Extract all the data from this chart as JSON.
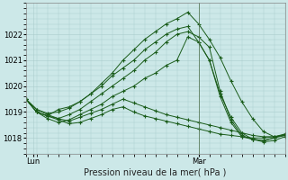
{
  "xlabel": "Pression niveau de la mer( hPa )",
  "background_color": "#cce8e8",
  "grid_color": "#aacccc",
  "line_color": "#1a5c1a",
  "marker": "+",
  "ylim": [
    1017.4,
    1023.2
  ],
  "xlim": [
    0,
    72
  ],
  "yticks": [
    1018,
    1019,
    1020,
    1021,
    1022
  ],
  "xtick_positions": [
    2,
    48
  ],
  "xtick_labels": [
    "Lun",
    "Mar"
  ],
  "vline_x": 48,
  "series": [
    [
      1019.5,
      1019.0,
      1018.85,
      1019.1,
      1019.2,
      1019.4,
      1019.7,
      1020.1,
      1020.5,
      1021.0,
      1021.4,
      1021.8,
      1022.1,
      1022.4,
      1022.6,
      1022.85,
      1022.4,
      1021.8,
      1021.1,
      1020.2,
      1019.4,
      1018.75,
      1018.25,
      1018.05,
      1018.1
    ],
    [
      1019.5,
      1019.0,
      1018.75,
      1018.6,
      1018.7,
      1018.9,
      1019.1,
      1019.3,
      1019.6,
      1019.8,
      1020.0,
      1020.3,
      1020.5,
      1020.8,
      1021.0,
      1021.9,
      1021.7,
      1021.0,
      1019.7,
      1018.8,
      1018.2,
      1017.95,
      1017.85,
      1017.9,
      1018.05
    ],
    [
      1019.5,
      1019.0,
      1018.85,
      1018.75,
      1018.9,
      1019.1,
      1019.4,
      1019.7,
      1020.0,
      1020.3,
      1020.6,
      1021.0,
      1021.3,
      1021.7,
      1022.0,
      1022.1,
      1021.9,
      1021.5,
      1019.8,
      1018.7,
      1018.1,
      1017.95,
      1017.9,
      1018.0,
      1018.15
    ],
    [
      1019.5,
      1019.1,
      1018.95,
      1019.0,
      1019.15,
      1019.4,
      1019.7,
      1020.0,
      1020.4,
      1020.7,
      1021.0,
      1021.4,
      1021.7,
      1022.0,
      1022.2,
      1022.3,
      1021.7,
      1021.0,
      1019.6,
      1018.6,
      1018.05,
      1017.95,
      1017.9,
      1018.0,
      1018.1
    ],
    [
      1019.5,
      1019.0,
      1018.85,
      1018.7,
      1018.55,
      1018.6,
      1018.75,
      1018.9,
      1019.1,
      1019.2,
      1019.0,
      1018.85,
      1018.75,
      1018.65,
      1018.55,
      1018.45,
      1018.35,
      1018.25,
      1018.15,
      1018.1,
      1018.05,
      1018.0,
      1018.0,
      1018.05,
      1018.1
    ],
    [
      1019.5,
      1019.1,
      1018.9,
      1018.75,
      1018.65,
      1018.8,
      1018.95,
      1019.1,
      1019.3,
      1019.5,
      1019.35,
      1019.2,
      1019.05,
      1018.9,
      1018.8,
      1018.7,
      1018.6,
      1018.5,
      1018.4,
      1018.3,
      1018.2,
      1018.1,
      1018.05,
      1018.05,
      1018.15
    ]
  ]
}
